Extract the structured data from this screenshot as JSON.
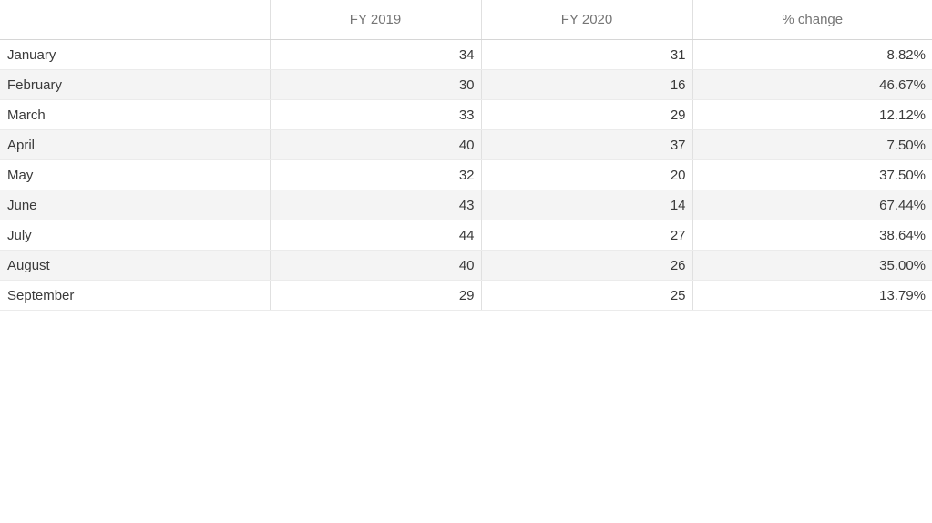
{
  "table": {
    "columns": [
      {
        "label": ""
      },
      {
        "label": "FY 2019"
      },
      {
        "label": "FY 2020"
      },
      {
        "label": "% change"
      }
    ],
    "rows": [
      {
        "month": "January",
        "fy2019": "34",
        "fy2020": "31",
        "pct_change": "8.82%"
      },
      {
        "month": "February",
        "fy2019": "30",
        "fy2020": "16",
        "pct_change": "46.67%"
      },
      {
        "month": "March",
        "fy2019": "33",
        "fy2020": "29",
        "pct_change": "12.12%"
      },
      {
        "month": "April",
        "fy2019": "40",
        "fy2020": "37",
        "pct_change": "7.50%"
      },
      {
        "month": "May",
        "fy2019": "32",
        "fy2020": "20",
        "pct_change": "37.50%"
      },
      {
        "month": "June",
        "fy2019": "43",
        "fy2020": "14",
        "pct_change": "67.44%"
      },
      {
        "month": "July",
        "fy2019": "44",
        "fy2020": "27",
        "pct_change": "38.64%"
      },
      {
        "month": "August",
        "fy2019": "40",
        "fy2020": "26",
        "pct_change": "35.00%"
      },
      {
        "month": "September",
        "fy2019": "29",
        "fy2020": "25",
        "pct_change": "13.79%"
      }
    ]
  },
  "chart_data": {
    "type": "table",
    "columns": [
      "",
      "FY 2019",
      "FY 2020",
      "% change"
    ],
    "categories": [
      "January",
      "February",
      "March",
      "April",
      "May",
      "June",
      "July",
      "August",
      "September"
    ],
    "series": [
      {
        "name": "FY 2019",
        "values": [
          34,
          30,
          33,
          40,
          32,
          43,
          44,
          40,
          29
        ]
      },
      {
        "name": "FY 2020",
        "values": [
          31,
          16,
          29,
          37,
          20,
          14,
          27,
          26,
          25
        ]
      },
      {
        "name": "% change",
        "values": [
          "8.82%",
          "46.67%",
          "12.12%",
          "7.50%",
          "37.50%",
          "67.44%",
          "38.64%",
          "35.00%",
          "13.79%"
        ]
      }
    ],
    "title": "",
    "layout": {
      "stripes": true,
      "header_align": "center",
      "numbers_align": "right"
    }
  },
  "colors": {
    "header_text": "#757575",
    "body_text": "#3a3a3a",
    "stripe": "#f4f4f4",
    "cell_border": "#e0e0e0",
    "row_border": "#ebebeb",
    "header_border": "#d6d6d6",
    "background": "#ffffff"
  }
}
